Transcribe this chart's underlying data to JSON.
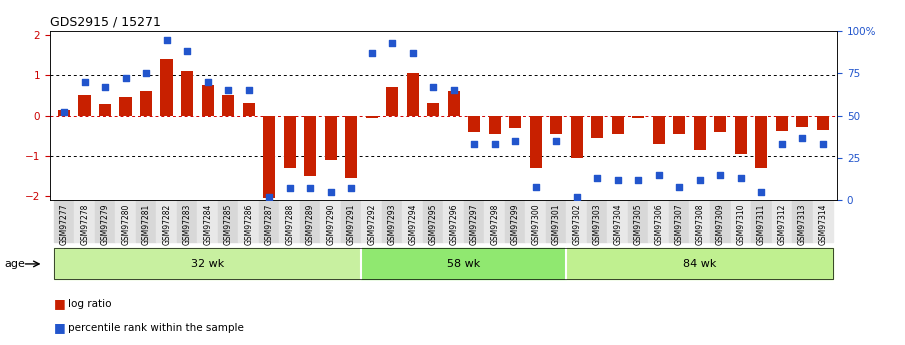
{
  "title": "GDS2915 / 15271",
  "samples": [
    "GSM97277",
    "GSM97278",
    "GSM97279",
    "GSM97280",
    "GSM97281",
    "GSM97282",
    "GSM97283",
    "GSM97284",
    "GSM97285",
    "GSM97286",
    "GSM97287",
    "GSM97288",
    "GSM97289",
    "GSM97290",
    "GSM97291",
    "GSM97292",
    "GSM97293",
    "GSM97294",
    "GSM97295",
    "GSM97296",
    "GSM97297",
    "GSM97298",
    "GSM97299",
    "GSM97300",
    "GSM97301",
    "GSM97302",
    "GSM97303",
    "GSM97304",
    "GSM97305",
    "GSM97306",
    "GSM97307",
    "GSM97308",
    "GSM97309",
    "GSM97310",
    "GSM97311",
    "GSM97312",
    "GSM97313",
    "GSM97314"
  ],
  "log_ratio": [
    0.15,
    0.5,
    0.28,
    0.45,
    0.6,
    1.4,
    1.1,
    0.75,
    0.5,
    0.3,
    -2.05,
    -1.3,
    -1.5,
    -1.1,
    -1.55,
    -0.05,
    0.7,
    1.05,
    0.3,
    0.6,
    -0.4,
    -0.45,
    -0.3,
    -1.3,
    -0.45,
    -1.05,
    -0.55,
    -0.45,
    -0.05,
    -0.7,
    -0.45,
    -0.85,
    -0.4,
    -0.95,
    -1.3,
    -0.38,
    -0.28,
    -0.35
  ],
  "percentile": [
    52,
    70,
    67,
    72,
    75,
    95,
    88,
    70,
    65,
    65,
    2,
    7,
    7,
    5,
    7,
    87,
    93,
    87,
    67,
    65,
    33,
    33,
    35,
    8,
    35,
    2,
    13,
    12,
    12,
    15,
    8,
    12,
    15,
    13,
    5,
    33,
    37,
    33
  ],
  "groups": [
    {
      "label": "32 wk",
      "start": 0,
      "end": 15,
      "color": "#c8f0a0"
    },
    {
      "label": "58 wk",
      "start": 15,
      "end": 25,
      "color": "#90e870"
    },
    {
      "label": "84 wk",
      "start": 25,
      "end": 38,
      "color": "#c0f090"
    }
  ],
  "bar_color": "#c82000",
  "square_color": "#2255cc",
  "ylim": [
    -2.1,
    2.1
  ],
  "yticks_left": [
    -2,
    -1,
    0,
    1,
    2
  ],
  "yticks_right": [
    0,
    25,
    50,
    75,
    100
  ],
  "yticks_right_labels": [
    "0",
    "25",
    "50",
    "75",
    "100%"
  ],
  "legend_items": [
    {
      "color": "#c82000",
      "label": "log ratio"
    },
    {
      "color": "#2255cc",
      "label": "percentile rank within the sample"
    }
  ],
  "age_label": "age",
  "plot_bg": "#ffffff",
  "tick_bg_even": "#d8d8d8",
  "tick_bg_odd": "#e8e8e8"
}
